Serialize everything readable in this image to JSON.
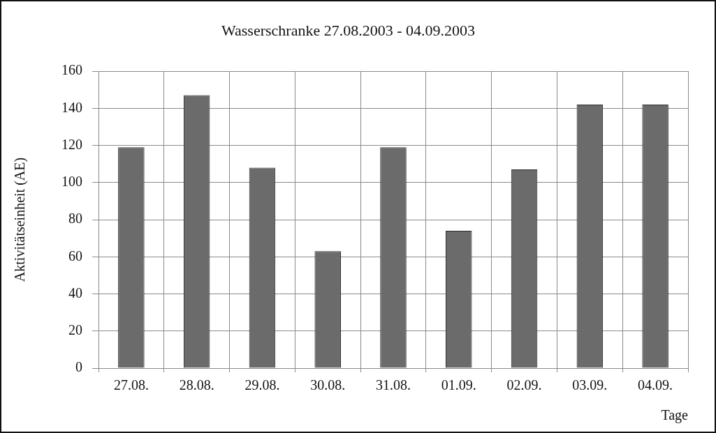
{
  "chart_data": {
    "type": "bar",
    "title": "Wasserschranke 27.08.2003 - 04.09.2003",
    "xlabel": "Tage",
    "ylabel": "Aktivitätseinheit (AE)",
    "categories": [
      "27.08.",
      "28.08.",
      "29.08.",
      "30.08.",
      "31.08.",
      "01.09.",
      "02.09.",
      "03.09.",
      "04.09."
    ],
    "values": [
      119,
      147,
      108,
      63,
      119,
      74,
      107,
      142,
      142
    ],
    "color": "#6b6b6b",
    "ylim": [
      0,
      160
    ],
    "yticks": [
      0,
      20,
      40,
      60,
      80,
      100,
      120,
      140,
      160
    ],
    "grid": true,
    "legend": false
  }
}
